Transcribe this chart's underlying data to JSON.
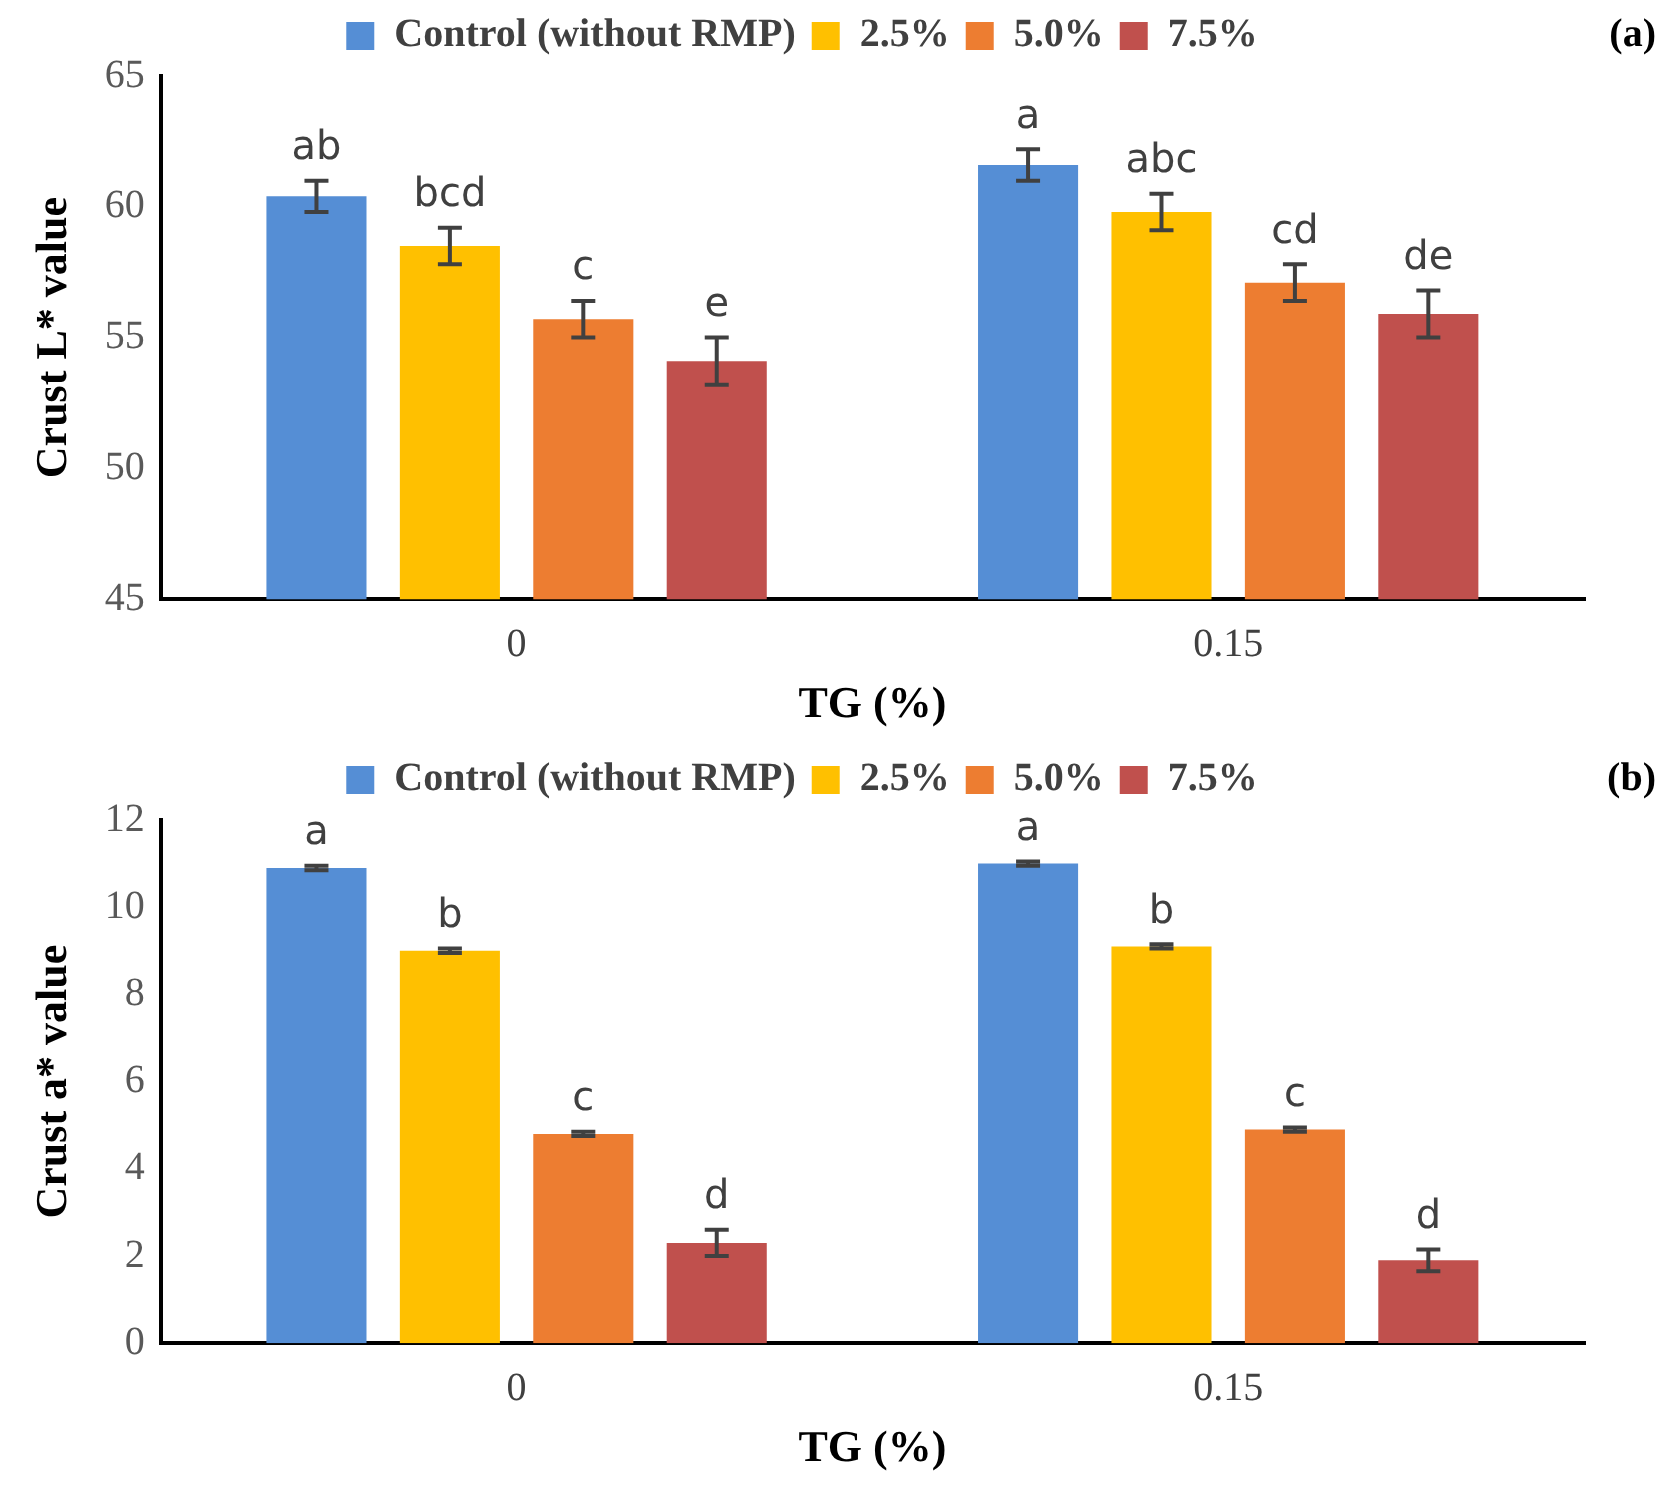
{
  "chart_data": [
    {
      "type": "bar",
      "categories": [
        "0",
        "0.15"
      ],
      "xlabel": "TG (%)",
      "ylabel": "Crust L* value",
      "ylim": [
        45,
        65
      ],
      "yticks": [
        45,
        50,
        55,
        60,
        65
      ],
      "grid": false,
      "legend": "top",
      "annotations": [
        "(a)"
      ],
      "series": [
        {
          "name": "Control (without RMP)",
          "color": "#558ed5",
          "values": [
            60.4,
            61.6
          ],
          "errors": [
            0.6,
            0.6
          ],
          "value_labels": [
            "ab",
            "a"
          ]
        },
        {
          "name": "2.5%",
          "color": "#ffc000",
          "values": [
            58.5,
            59.8
          ],
          "errors": [
            0.7,
            0.7
          ],
          "value_labels": [
            "bcd",
            "abc"
          ]
        },
        {
          "name": "5.0%",
          "color": "#ed7d31",
          "values": [
            55.7,
            57.1
          ],
          "errors": [
            0.7,
            0.7
          ],
          "value_labels": [
            "c",
            "cd"
          ]
        },
        {
          "name": "7.5%",
          "color": "#c0504d",
          "values": [
            54.1,
            55.9
          ],
          "errors": [
            0.9,
            0.9
          ],
          "value_labels": [
            "e",
            "de"
          ]
        }
      ]
    },
    {
      "type": "bar",
      "categories": [
        "0",
        "0.15"
      ],
      "xlabel": "TG (%)",
      "ylabel": "Crust a* value",
      "ylim": [
        0,
        12
      ],
      "yticks": [
        0,
        2,
        4,
        6,
        8,
        10,
        12
      ],
      "grid": false,
      "legend": "top",
      "annotations": [
        "(b)"
      ],
      "series": [
        {
          "name": "Control (without RMP)",
          "color": "#558ed5",
          "values": [
            10.9,
            11.0
          ],
          "errors": [
            0.05,
            0.05
          ],
          "value_labels": [
            "a",
            "a"
          ]
        },
        {
          "name": "2.5%",
          "color": "#ffc000",
          "values": [
            9.0,
            9.1
          ],
          "errors": [
            0.05,
            0.05
          ],
          "value_labels": [
            "b",
            "b"
          ]
        },
        {
          "name": "5.0%",
          "color": "#ed7d31",
          "values": [
            4.8,
            4.9
          ],
          "errors": [
            0.05,
            0.05
          ],
          "value_labels": [
            "c",
            "c"
          ]
        },
        {
          "name": "7.5%",
          "color": "#c0504d",
          "values": [
            2.3,
            1.9
          ],
          "errors": [
            0.3,
            0.25
          ],
          "value_labels": [
            "d",
            "d"
          ]
        }
      ]
    }
  ]
}
